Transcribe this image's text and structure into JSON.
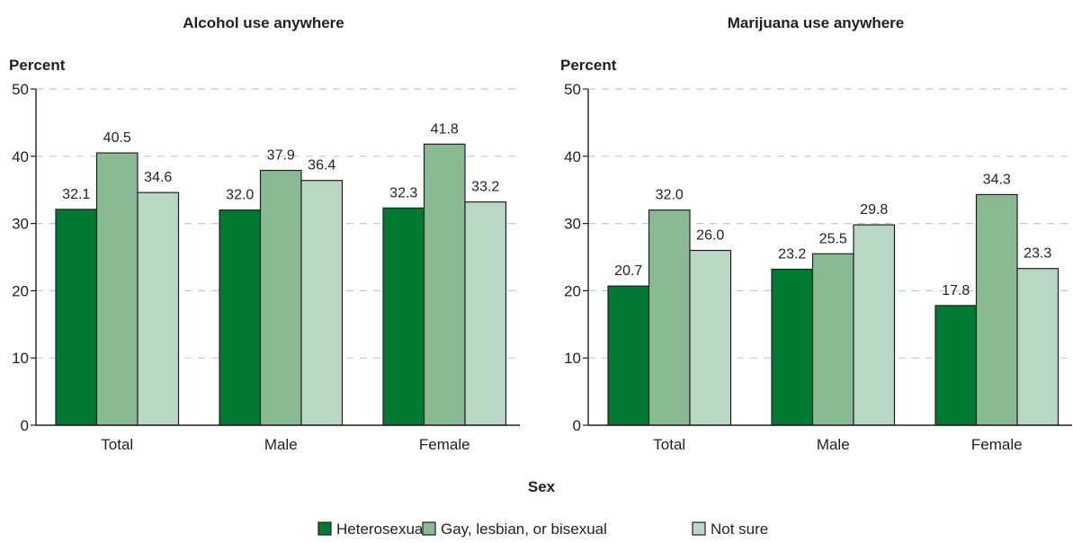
{
  "colors": {
    "Heterosexual": "#007a33",
    "Gay, lesbian, or bisexual": "#8aba94",
    "Not sure": "#b9d8c3",
    "bar_stroke": "#231f20",
    "grid": "#c8c8c8"
  },
  "chart_data": [
    {
      "type": "bar",
      "title": "Alcohol use anywhere",
      "ylabel": "Percent",
      "xlabel": "Sex",
      "ylim": [
        0,
        50
      ],
      "yticks": [
        "0",
        "10",
        "20",
        "30",
        "40",
        "50"
      ],
      "grid": true,
      "categories": [
        "Total",
        "Male",
        "Female"
      ],
      "series": [
        {
          "name": "Heterosexual",
          "values": [
            32.1,
            32.0,
            32.3
          ]
        },
        {
          "name": "Gay, lesbian, or bisexual",
          "values": [
            40.5,
            37.9,
            41.8
          ]
        },
        {
          "name": "Not sure",
          "values": [
            34.6,
            36.4,
            33.2
          ]
        }
      ]
    },
    {
      "type": "bar",
      "title": "Marijuana use anywhere",
      "ylabel": "Percent",
      "xlabel": "Sex",
      "ylim": [
        0,
        50
      ],
      "yticks": [
        "0",
        "10",
        "20",
        "30",
        "40",
        "50"
      ],
      "grid": true,
      "categories": [
        "Total",
        "Male",
        "Female"
      ],
      "series": [
        {
          "name": "Heterosexual",
          "values": [
            20.7,
            23.2,
            17.8
          ]
        },
        {
          "name": "Gay, lesbian, or bisexual",
          "values": [
            32.0,
            25.5,
            34.3
          ]
        },
        {
          "name": "Not sure",
          "values": [
            26.0,
            29.8,
            23.3
          ]
        }
      ]
    }
  ],
  "x_axis_title": "Sex",
  "legend": {
    "position": "bottom",
    "items": [
      "Heterosexual",
      "Gay, lesbian, or bisexual",
      "Not sure"
    ]
  }
}
